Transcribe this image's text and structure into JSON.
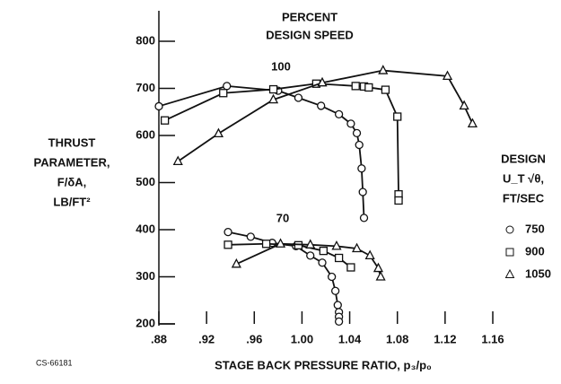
{
  "chart_data": {
    "type": "line",
    "title": [
      "PERCENT",
      "DESIGN SPEED"
    ],
    "y_label": [
      "THRUST",
      "PARAMETER,",
      "F/δA,",
      "LB/FT²"
    ],
    "x_label": "STAGE BACK PRESSURE RATIO, p₃/p₀",
    "figure_code": "CS-66181",
    "xlim": [
      0.88,
      1.16
    ],
    "ylim": [
      200,
      800
    ],
    "xticks": [
      {
        "value": 0.88,
        "label": ".88"
      },
      {
        "value": 0.92,
        "label": ".92"
      },
      {
        "value": 0.96,
        "label": ".96"
      },
      {
        "value": 1.0,
        "label": "1.00"
      },
      {
        "value": 1.04,
        "label": "1.04"
      },
      {
        "value": 1.08,
        "label": "1.08"
      },
      {
        "value": 1.12,
        "label": "1.12"
      },
      {
        "value": 1.16,
        "label": "1.16"
      }
    ],
    "yticks": [
      200,
      300,
      400,
      500,
      600,
      700,
      800
    ],
    "color": "#111111",
    "legend": {
      "title": [
        "DESIGN",
        "U_T √θ,",
        "FT/SEC"
      ],
      "entries": [
        {
          "name": "750",
          "marker": "circle"
        },
        {
          "name": "900",
          "marker": "square"
        },
        {
          "name": "1050",
          "marker": "triangle"
        }
      ]
    },
    "groups": [
      {
        "name": "100",
        "series": [
          {
            "marker": "circle",
            "x": [
              0.88,
              0.937,
              0.98,
              0.997,
              1.016,
              1.031,
              1.041,
              1.046,
              1.048,
              1.05,
              1.051,
              1.052
            ],
            "values": [
              662,
              705,
              695,
              680,
              663,
              645,
              625,
              605,
              580,
              530,
              480,
              425
            ]
          },
          {
            "marker": "square",
            "x": [
              0.885,
              0.934,
              0.976,
              1.012,
              1.045,
              1.052,
              1.056,
              1.07,
              1.08,
              1.081,
              1.081
            ],
            "values": [
              632,
              690,
              698,
              710,
              705,
              704,
              702,
              697,
              640,
              475,
              462
            ]
          },
          {
            "marker": "triangle",
            "x": [
              0.896,
              0.93,
              0.976,
              1.017,
              1.068,
              1.122,
              1.136,
              1.143
            ],
            "values": [
              545,
              604,
              676,
              712,
              738,
              726,
              663,
              625
            ]
          }
        ]
      },
      {
        "name": "70",
        "series": [
          {
            "marker": "circle",
            "x": [
              0.938,
              0.957,
              0.975,
              0.995,
              1.007,
              1.017,
              1.025,
              1.028,
              1.03,
              1.031,
              1.031,
              1.031
            ],
            "values": [
              395,
              385,
              372,
              365,
              345,
              330,
              300,
              270,
              240,
              225,
              215,
              205
            ]
          },
          {
            "marker": "square",
            "x": [
              0.938,
              0.97,
              0.997,
              1.018,
              1.031,
              1.041
            ],
            "values": [
              368,
              370,
              367,
              355,
              340,
              320
            ]
          },
          {
            "marker": "triangle",
            "x": [
              0.945,
              0.982,
              1.007,
              1.029,
              1.046,
              1.057,
              1.064,
              1.066
            ],
            "values": [
              327,
              370,
              368,
              365,
              360,
              345,
              318,
              300
            ]
          }
        ]
      }
    ]
  }
}
